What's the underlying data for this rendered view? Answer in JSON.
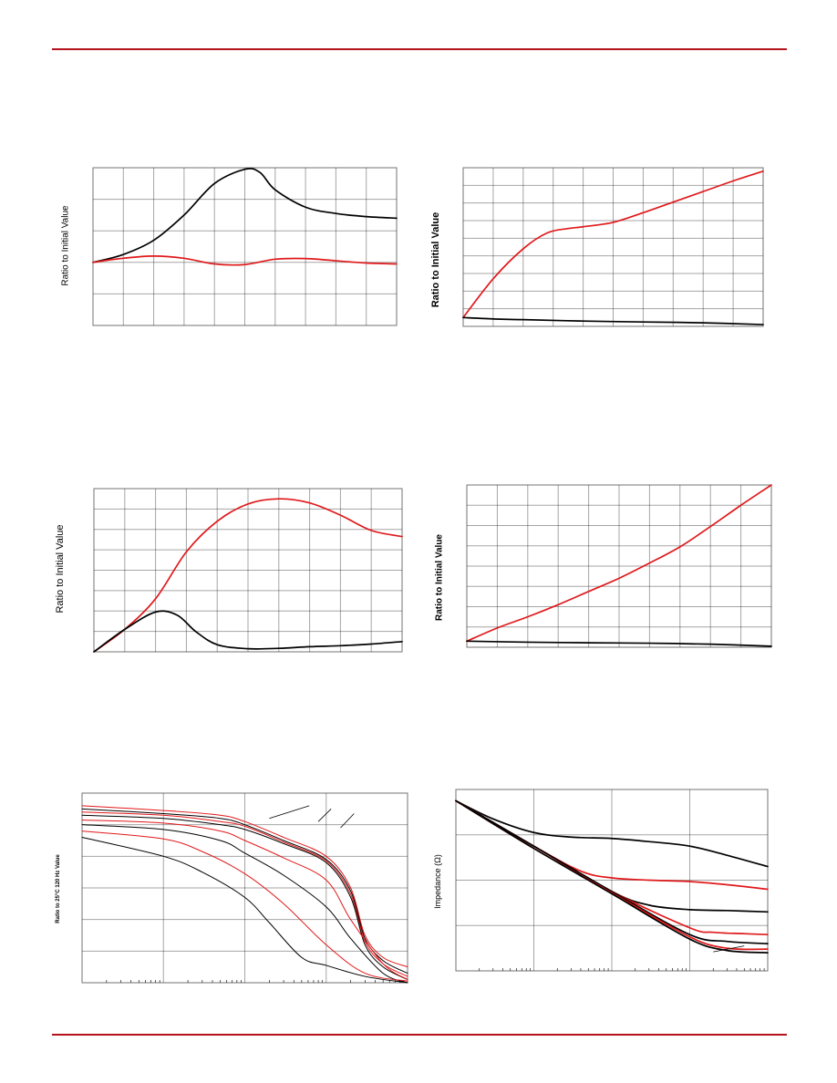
{
  "colors": {
    "accent": "#b5121b",
    "red_series": "#e0191b",
    "black_series": "#000000"
  },
  "chart_data": [
    {
      "type": "line",
      "ylabel": "Ratio to Initial Value",
      "grid": true,
      "grid_cols": 10,
      "grid_rows": 5,
      "xlim": [
        0,
        10
      ],
      "ylim": [
        0,
        5
      ],
      "series": [
        {
          "color": "black",
          "x": [
            0,
            1,
            2,
            3,
            4,
            5,
            5.5,
            6,
            7,
            8,
            9,
            10
          ],
          "y": [
            2,
            2.25,
            2.7,
            3.5,
            4.5,
            4.95,
            4.85,
            4.3,
            3.75,
            3.55,
            3.45,
            3.4
          ]
        },
        {
          "color": "red",
          "x": [
            0,
            1,
            2,
            3,
            4,
            5,
            6,
            7,
            8,
            9,
            10
          ],
          "y": [
            2,
            2.13,
            2.2,
            2.13,
            1.95,
            1.93,
            2.1,
            2.12,
            2.05,
            1.98,
            1.95
          ]
        }
      ]
    },
    {
      "type": "line",
      "ylabel": "Ratio to Initial Value",
      "grid": true,
      "grid_cols": 10,
      "grid_rows": 9,
      "xlim": [
        0,
        10
      ],
      "ylim": [
        0,
        9
      ],
      "series": [
        {
          "color": "red",
          "x": [
            0,
            1,
            2,
            2.8,
            3.5,
            4,
            5,
            6,
            7,
            8,
            9,
            10
          ],
          "y": [
            0.5,
            2.7,
            4.4,
            5.3,
            5.55,
            5.65,
            5.9,
            6.45,
            7.05,
            7.65,
            8.25,
            8.8
          ]
        },
        {
          "color": "black",
          "x": [
            0,
            1,
            2,
            4,
            6,
            8,
            10
          ],
          "y": [
            0.5,
            0.42,
            0.38,
            0.3,
            0.25,
            0.2,
            0.1
          ]
        }
      ]
    },
    {
      "type": "line",
      "ylabel": "Ratio to Initial Value",
      "grid": true,
      "grid_cols": 10,
      "grid_rows": 8,
      "xlim": [
        0,
        10
      ],
      "ylim": [
        0,
        8
      ],
      "series": [
        {
          "color": "red",
          "x": [
            0,
            1,
            2,
            3,
            4,
            5,
            6,
            7,
            8,
            9,
            10
          ],
          "y": [
            0,
            1.1,
            2.6,
            4.9,
            6.4,
            7.25,
            7.5,
            7.3,
            6.7,
            5.95,
            5.65
          ]
        },
        {
          "color": "black",
          "x": [
            0,
            1,
            2,
            2.7,
            3.3,
            4,
            5,
            6,
            7,
            8,
            9,
            10
          ],
          "y": [
            0,
            1.1,
            1.95,
            1.8,
            1,
            0.35,
            0.15,
            0.17,
            0.25,
            0.3,
            0.38,
            0.5
          ]
        }
      ]
    },
    {
      "type": "line",
      "ylabel": "Ratio to Initial Value",
      "grid": true,
      "grid_cols": 10,
      "grid_rows": 8,
      "xlim": [
        0,
        10
      ],
      "ylim": [
        0,
        8
      ],
      "series": [
        {
          "color": "red",
          "x": [
            0,
            1,
            2,
            3,
            4,
            5,
            6,
            7,
            8,
            9,
            10
          ],
          "y": [
            0.3,
            0.95,
            1.5,
            2.1,
            2.75,
            3.4,
            4.15,
            4.95,
            5.95,
            7.0,
            8.0
          ]
        },
        {
          "color": "black",
          "x": [
            0,
            2,
            4,
            6,
            8,
            10
          ],
          "y": [
            0.3,
            0.25,
            0.22,
            0.2,
            0.15,
            0.05
          ]
        }
      ]
    },
    {
      "type": "line",
      "ylabel": "Ratio to 25°C 120 Hz Value",
      "grid": true,
      "xscale": "log",
      "grid_cols": 4,
      "grid_rows": 6,
      "xlim": [
        1,
        10000
      ],
      "ylim": [
        0,
        6
      ],
      "series": [
        {
          "color": "red",
          "thin": true,
          "x": [
            1,
            10,
            50,
            100,
            300,
            1000,
            2000,
            3000,
            5000,
            10000
          ],
          "y": [
            5.6,
            5.45,
            5.3,
            5.1,
            4.6,
            4.0,
            3.0,
            1.5,
            0.8,
            0.5
          ]
        },
        {
          "color": "black",
          "thin": true,
          "x": [
            1,
            10,
            50,
            100,
            300,
            1000,
            2000,
            3000,
            5000,
            10000
          ],
          "y": [
            5.5,
            5.35,
            5.2,
            5.0,
            4.5,
            3.9,
            2.9,
            1.4,
            0.7,
            0.3
          ]
        },
        {
          "color": "red",
          "thin": true,
          "x": [
            1,
            10,
            50,
            100,
            300,
            1000,
            2000,
            3000,
            5000,
            10000
          ],
          "y": [
            5.4,
            5.3,
            5.1,
            4.95,
            4.45,
            3.85,
            2.8,
            1.3,
            0.6,
            0.2
          ]
        },
        {
          "color": "black",
          "thin": true,
          "x": [
            1,
            10,
            50,
            100,
            300,
            1000,
            2000,
            3000,
            5000,
            10000
          ],
          "y": [
            5.3,
            5.2,
            5.0,
            4.85,
            4.4,
            3.8,
            2.7,
            1.2,
            0.5,
            0.1
          ]
        },
        {
          "color": "red",
          "thin": true,
          "x": [
            1,
            10,
            50,
            100,
            300,
            1000,
            2000,
            5000,
            10000
          ],
          "y": [
            5.15,
            5.05,
            4.8,
            4.5,
            3.95,
            3.25,
            2.0,
            0.6,
            0.1
          ]
        },
        {
          "color": "black",
          "thin": true,
          "x": [
            1,
            10,
            50,
            100,
            300,
            1000,
            2000,
            5000,
            10000
          ],
          "y": [
            5.0,
            4.85,
            4.5,
            4.1,
            3.4,
            2.4,
            1.4,
            0.3,
            0.0
          ]
        },
        {
          "color": "red",
          "thin": true,
          "x": [
            1,
            10,
            30,
            100,
            300,
            1000,
            3000,
            10000
          ],
          "y": [
            4.8,
            4.55,
            4.15,
            3.45,
            2.5,
            1.2,
            0.3,
            0.05
          ]
        },
        {
          "color": "black",
          "thin": true,
          "x": [
            1,
            10,
            30,
            100,
            200,
            500,
            1000,
            3000,
            10000
          ],
          "y": [
            4.6,
            4.0,
            3.5,
            2.7,
            1.9,
            0.8,
            0.55,
            0.2,
            0.0
          ]
        }
      ],
      "leader_lines": [
        {
          "from": [
            620,
            5.6
          ],
          "to": [
            200,
            5.2
          ]
        },
        {
          "from": [
            1150,
            5.5
          ],
          "to": [
            800,
            5.1
          ]
        },
        {
          "from": [
            2200,
            5.35
          ],
          "to": [
            1500,
            4.9
          ]
        }
      ]
    },
    {
      "type": "line",
      "ylabel": "Impedance (Ω)",
      "grid": true,
      "xscale": "log",
      "grid_cols": 4,
      "grid_rows": 4,
      "xlim": [
        1,
        10000
      ],
      "ylim": [
        0,
        4
      ],
      "series": [
        {
          "color": "black",
          "x": [
            1,
            3,
            10,
            30,
            100,
            300,
            1000,
            3000,
            10000
          ],
          "y": [
            3.75,
            3.35,
            3.05,
            2.95,
            2.92,
            2.85,
            2.75,
            2.55,
            2.3
          ]
        },
        {
          "color": "red",
          "x": [
            1,
            10,
            40,
            100,
            300,
            1000,
            3000,
            10000
          ],
          "y": [
            3.75,
            2.75,
            2.2,
            2.05,
            2.0,
            1.97,
            1.9,
            1.8
          ]
        },
        {
          "color": "black",
          "x": [
            1,
            10,
            100,
            300,
            1000,
            3000,
            10000
          ],
          "y": [
            3.75,
            2.75,
            1.75,
            1.45,
            1.35,
            1.33,
            1.3
          ]
        },
        {
          "color": "red",
          "x": [
            1,
            10,
            100,
            1000,
            2000,
            5000,
            10000
          ],
          "y": [
            3.75,
            2.75,
            1.75,
            0.95,
            0.85,
            0.82,
            0.8
          ]
        },
        {
          "color": "black",
          "x": [
            1,
            10,
            100,
            1000,
            3000,
            10000
          ],
          "y": [
            3.75,
            2.75,
            1.75,
            0.8,
            0.65,
            0.6
          ]
        },
        {
          "color": "red",
          "x": [
            1,
            10,
            100,
            1000,
            3000,
            10000
          ],
          "y": [
            3.75,
            2.7,
            1.72,
            0.75,
            0.5,
            0.48
          ]
        },
        {
          "color": "black",
          "x": [
            1,
            10,
            100,
            1000,
            3000,
            10000
          ],
          "y": [
            3.75,
            2.7,
            1.7,
            0.7,
            0.45,
            0.4
          ]
        }
      ],
      "leader_lines": [
        {
          "from": [
            2000,
            0.42
          ],
          "to": [
            5000,
            0.55
          ]
        }
      ]
    }
  ]
}
